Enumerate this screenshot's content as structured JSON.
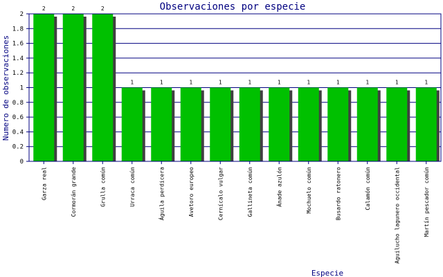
{
  "chart_data": {
    "type": "bar",
    "title": "Observaciones por especie",
    "xlabel": "Especie",
    "ylabel": "Numero de observaciones",
    "ylim": [
      0,
      2
    ],
    "yticks": [
      "0",
      "0.2",
      "0.4",
      "0.6",
      "0.8",
      "1",
      "1.2",
      "1.4",
      "1.6",
      "1.8",
      "2"
    ],
    "grid": true,
    "categories": [
      "Garza real",
      "Cormorán grande",
      "Grulla común",
      "Urraca común",
      "Águila perdicera",
      "Avetoro europeo",
      "Cernícalo vulgar",
      "Gallineta común",
      "Ánade azulón",
      "Mochuelo común",
      "Busardo ratonero",
      "Calamón común",
      "Aguilucho lagunero occidental",
      "Martín pescador común"
    ],
    "values": [
      2,
      2,
      2,
      1,
      1,
      1,
      1,
      1,
      1,
      1,
      1,
      1,
      1,
      1
    ],
    "data_labels": [
      "2",
      "2",
      "2",
      "1",
      "1",
      "1",
      "1",
      "1",
      "1",
      "1",
      "1",
      "1",
      "1",
      "1"
    ],
    "colors": {
      "bar": "#00c000",
      "bar_shadow": "#404040",
      "grid": "#000080",
      "frame": "#000080",
      "text": "#000080",
      "tick_text": "#000000"
    }
  }
}
